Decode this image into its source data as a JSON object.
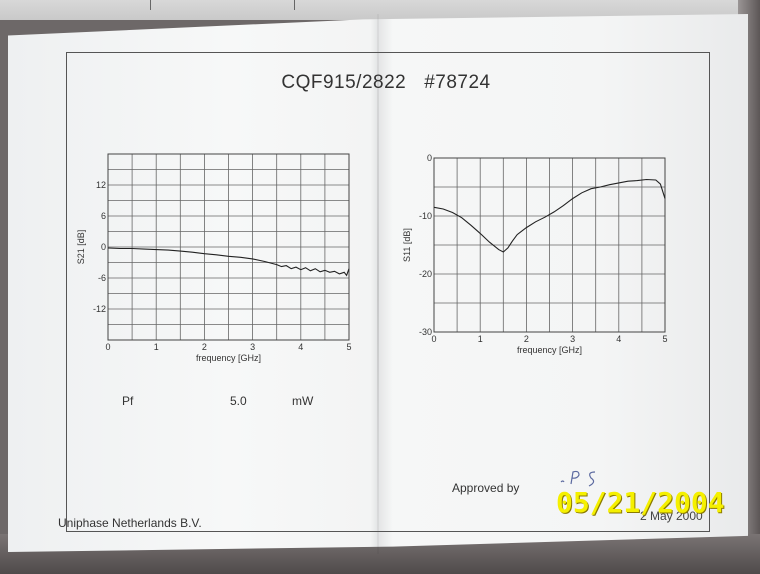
{
  "document": {
    "title_part": "CQF915/2822",
    "title_number": "#78724",
    "pf_label": "Pf",
    "pf_value": "5.0",
    "pf_unit": "mW",
    "approved_label": "Approved by",
    "company": "Uniphase Netherlands B.V.",
    "doc_date": "2 May 2000",
    "photo_stamp": "05/21/2004"
  },
  "colors": {
    "ink": "#333333",
    "grid": "#666666",
    "stamp": "#f5f000"
  },
  "chart_data": [
    {
      "type": "line",
      "title": "",
      "xlabel": "frequency [GHz]",
      "ylabel": "S21 [dB]",
      "xlim": [
        0,
        5
      ],
      "ylim": [
        -18,
        18
      ],
      "xticks": [
        "0",
        "1",
        "2",
        "3",
        "4",
        "5"
      ],
      "yticks": [
        "12",
        "6",
        "0",
        "-6",
        "-12"
      ],
      "ytick_values": [
        12,
        6,
        0,
        -6,
        -12
      ],
      "grid": true,
      "series": [
        {
          "x": [
            0,
            0.25,
            0.5,
            0.75,
            1.0,
            1.25,
            1.5,
            1.75,
            2.0,
            2.25,
            2.5,
            2.75,
            3.0,
            3.25,
            3.5,
            3.6,
            3.7,
            3.8,
            3.9,
            4.0,
            4.1,
            4.2,
            4.3,
            4.4,
            4.5,
            4.6,
            4.7,
            4.8,
            4.9,
            4.95,
            5.0
          ],
          "y": [
            -0.2,
            -0.3,
            -0.3,
            -0.4,
            -0.5,
            -0.6,
            -0.8,
            -1.0,
            -1.3,
            -1.5,
            -1.8,
            -2.0,
            -2.3,
            -2.8,
            -3.4,
            -3.8,
            -3.6,
            -4.2,
            -3.9,
            -4.4,
            -4.0,
            -4.6,
            -4.2,
            -4.8,
            -4.5,
            -4.9,
            -4.7,
            -5.2,
            -4.9,
            -5.5,
            -4.2
          ]
        }
      ]
    },
    {
      "type": "line",
      "title": "",
      "xlabel": "frequency [GHz]",
      "ylabel": "S11 [dB]",
      "xlim": [
        0,
        5
      ],
      "ylim": [
        -30,
        0
      ],
      "xticks": [
        "0",
        "1",
        "2",
        "3",
        "4",
        "5"
      ],
      "yticks": [
        "0",
        "-10",
        "-20",
        "-30"
      ],
      "ytick_values": [
        0,
        -10,
        -20,
        -30
      ],
      "grid": true,
      "series": [
        {
          "x": [
            0,
            0.2,
            0.4,
            0.6,
            0.8,
            1.0,
            1.2,
            1.4,
            1.5,
            1.6,
            1.7,
            1.8,
            1.9,
            2.0,
            2.2,
            2.4,
            2.6,
            2.8,
            3.0,
            3.2,
            3.4,
            3.6,
            3.8,
            4.0,
            4.2,
            4.4,
            4.6,
            4.8,
            4.9,
            5.0
          ],
          "y": [
            -8.5,
            -8.8,
            -9.4,
            -10.3,
            -11.6,
            -13.0,
            -14.5,
            -15.8,
            -16.2,
            -15.5,
            -14.3,
            -13.2,
            -12.6,
            -12.0,
            -11.0,
            -10.2,
            -9.3,
            -8.2,
            -7.0,
            -6.0,
            -5.3,
            -5.0,
            -4.6,
            -4.3,
            -4.0,
            -3.9,
            -3.7,
            -3.8,
            -4.5,
            -7.0
          ]
        }
      ]
    }
  ]
}
